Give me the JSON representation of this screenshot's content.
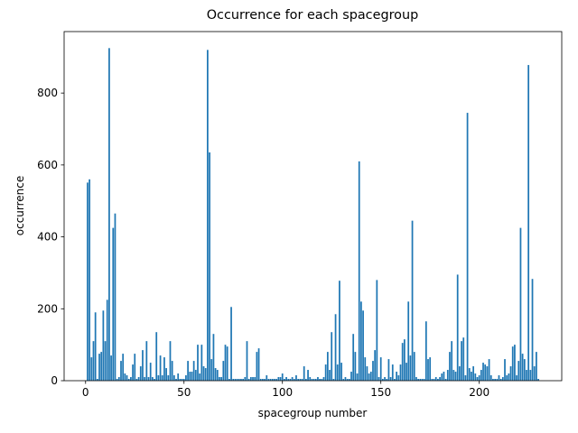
{
  "chart_data": {
    "type": "bar",
    "title": "Occurrence for each spacegroup",
    "xlabel": "spacegroup number",
    "ylabel": "occurrence",
    "color": "#1f77b4",
    "x": [
      1,
      2,
      3,
      4,
      5,
      6,
      7,
      8,
      9,
      10,
      11,
      12,
      13,
      14,
      15,
      16,
      17,
      18,
      19,
      20,
      21,
      22,
      23,
      24,
      25,
      26,
      27,
      28,
      29,
      30,
      31,
      32,
      33,
      34,
      35,
      36,
      37,
      38,
      39,
      40,
      41,
      42,
      43,
      44,
      45,
      46,
      47,
      48,
      49,
      50,
      51,
      52,
      53,
      54,
      55,
      56,
      57,
      58,
      59,
      60,
      61,
      62,
      63,
      64,
      65,
      66,
      67,
      68,
      69,
      70,
      71,
      72,
      73,
      74,
      75,
      76,
      77,
      78,
      79,
      80,
      81,
      82,
      83,
      84,
      85,
      86,
      87,
      88,
      89,
      90,
      91,
      92,
      93,
      94,
      95,
      96,
      97,
      98,
      99,
      100,
      101,
      102,
      103,
      104,
      105,
      106,
      107,
      108,
      109,
      110,
      111,
      112,
      113,
      114,
      115,
      116,
      117,
      118,
      119,
      120,
      121,
      122,
      123,
      124,
      125,
      126,
      127,
      128,
      129,
      130,
      131,
      132,
      133,
      134,
      135,
      136,
      137,
      138,
      139,
      140,
      141,
      142,
      143,
      144,
      145,
      146,
      147,
      148,
      149,
      150,
      151,
      152,
      153,
      154,
      155,
      156,
      157,
      158,
      159,
      160,
      161,
      162,
      163,
      164,
      165,
      166,
      167,
      168,
      169,
      170,
      171,
      172,
      173,
      174,
      175,
      176,
      177,
      178,
      179,
      180,
      181,
      182,
      183,
      184,
      185,
      186,
      187,
      188,
      189,
      190,
      191,
      192,
      193,
      194,
      195,
      196,
      197,
      198,
      199,
      200,
      201,
      202,
      203,
      204,
      205,
      206,
      207,
      208,
      209,
      210,
      211,
      212,
      213,
      214,
      215,
      216,
      217,
      218,
      219,
      220,
      221,
      222,
      223,
      224,
      225,
      226,
      227,
      228,
      229,
      230
    ],
    "values": [
      551,
      560,
      65,
      110,
      190,
      5,
      75,
      80,
      195,
      110,
      225,
      925,
      70,
      425,
      465,
      5,
      10,
      55,
      75,
      20,
      15,
      5,
      10,
      45,
      75,
      5,
      10,
      40,
      85,
      10,
      110,
      10,
      50,
      10,
      5,
      135,
      15,
      70,
      15,
      65,
      35,
      15,
      110,
      55,
      15,
      5,
      20,
      5,
      5,
      5,
      15,
      55,
      25,
      25,
      55,
      30,
      100,
      20,
      100,
      40,
      35,
      920,
      635,
      60,
      130,
      35,
      30,
      10,
      10,
      55,
      100,
      95,
      5,
      205,
      5,
      5,
      5,
      5,
      5,
      5,
      10,
      110,
      5,
      10,
      10,
      10,
      80,
      90,
      5,
      5,
      5,
      15,
      5,
      5,
      5,
      5,
      5,
      10,
      10,
      20,
      5,
      10,
      5,
      5,
      10,
      5,
      15,
      5,
      5,
      5,
      40,
      5,
      30,
      10,
      5,
      5,
      5,
      10,
      5,
      5,
      10,
      45,
      80,
      30,
      135,
      5,
      185,
      45,
      278,
      50,
      5,
      10,
      5,
      5,
      25,
      130,
      80,
      20,
      610,
      220,
      195,
      65,
      40,
      20,
      25,
      55,
      85,
      280,
      10,
      65,
      5,
      10,
      5,
      60,
      10,
      45,
      5,
      25,
      15,
      45,
      105,
      115,
      50,
      220,
      70,
      445,
      80,
      10,
      5,
      5,
      5,
      5,
      165,
      60,
      65,
      5,
      5,
      10,
      5,
      10,
      20,
      25,
      5,
      30,
      80,
      110,
      30,
      25,
      295,
      40,
      110,
      120,
      15,
      745,
      35,
      25,
      40,
      20,
      10,
      15,
      30,
      50,
      45,
      40,
      60,
      15,
      5,
      5,
      5,
      15,
      5,
      10,
      60,
      15,
      20,
      40,
      95,
      100,
      15,
      55,
      425,
      75,
      60,
      30,
      878,
      30,
      283,
      40,
      80,
      5
    ],
    "xlim": [
      -10.9,
      241.9
    ],
    "ylim": [
      0,
      971
    ],
    "xticks": [
      0,
      50,
      100,
      150,
      200
    ],
    "yticks": [
      0,
      200,
      400,
      600,
      800
    ],
    "grid": false
  }
}
